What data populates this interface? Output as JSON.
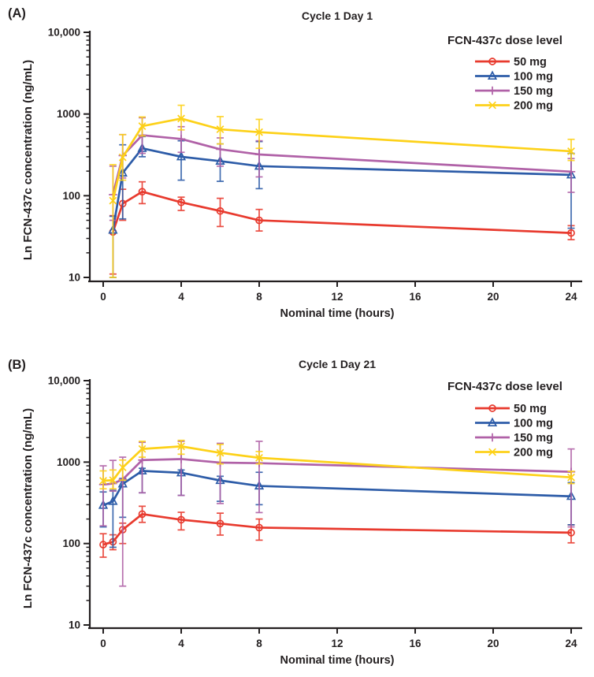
{
  "figure": {
    "background": "#ffffff",
    "text_color": "#231f20",
    "axis_color": "#231f20"
  },
  "chart_data": [
    {
      "type": "line",
      "panel_label": "(A)",
      "title": "Cycle 1 Day 1",
      "xlabel": "Nominal time (hours)",
      "ylabel": "Ln FCN-437c concentration (ng/mL)",
      "yscale": "log",
      "xlim": [
        0,
        24
      ],
      "ylim": [
        10,
        10000
      ],
      "xticks": [
        0,
        4,
        8,
        12,
        16,
        20,
        24
      ],
      "yticks": [
        10,
        100,
        1000,
        10000
      ],
      "ytick_labels": [
        "10",
        "100",
        "1000",
        "10,000"
      ],
      "grid": false,
      "legend_title": "FCN-437c dose level",
      "legend_position": "top-right",
      "x": [
        0.5,
        1,
        2,
        4,
        6,
        8,
        24
      ],
      "series": [
        {
          "name": "50 mg",
          "color": "#e83a2e",
          "marker": "circle",
          "values": [
            36,
            80,
            112,
            83,
            65,
            50,
            35
          ],
          "err_lo": [
            11,
            50,
            80,
            66,
            42,
            37,
            29
          ],
          "err_hi": [
            57,
            120,
            148,
            96,
            93,
            68,
            43
          ]
        },
        {
          "name": "100 mg",
          "color": "#2d5ca8",
          "marker": "triangle",
          "values": [
            38,
            190,
            380,
            300,
            265,
            230,
            180
          ],
          "err_lo": [
            10,
            52,
            300,
            155,
            150,
            122,
            40
          ],
          "err_hi": [
            56,
            420,
            530,
            470,
            430,
            460,
            330
          ]
        },
        {
          "name": "150 mg",
          "color": "#b061a7",
          "marker": "plus",
          "values": [
            103,
            310,
            550,
            495,
            370,
            320,
            197
          ],
          "err_lo": [
            50,
            165,
            330,
            340,
            230,
            170,
            110
          ],
          "err_hi": [
            230,
            560,
            900,
            700,
            510,
            470,
            285
          ]
        },
        {
          "name": "200 mg",
          "color": "#fdd118",
          "marker": "x",
          "values": [
            87,
            295,
            710,
            880,
            650,
            600,
            350
          ],
          "err_lo": [
            10,
            155,
            540,
            640,
            430,
            380,
            270
          ],
          "err_hi": [
            240,
            560,
            920,
            1280,
            930,
            860,
            490
          ]
        }
      ]
    },
    {
      "type": "line",
      "panel_label": "(B)",
      "title": "Cycle 1 Day 21",
      "xlabel": "Nominal time (hours)",
      "ylabel": "Ln FCN-437c concentration (ng/mL)",
      "yscale": "log",
      "xlim": [
        0,
        24
      ],
      "ylim": [
        10,
        10000
      ],
      "xticks": [
        0,
        4,
        8,
        12,
        16,
        20,
        24
      ],
      "yticks": [
        10,
        100,
        1000,
        10000
      ],
      "ytick_labels": [
        "10",
        "100",
        "1000",
        "10,000"
      ],
      "grid": false,
      "legend_title": "FCN-437c dose level",
      "legend_position": "top-right",
      "x": [
        0,
        0.5,
        1,
        2,
        4,
        6,
        8,
        24
      ],
      "series": [
        {
          "name": "50 mg",
          "color": "#e83a2e",
          "marker": "circle",
          "values": [
            97,
            105,
            148,
            230,
            196,
            176,
            157,
            136
          ],
          "err_lo": [
            68,
            84,
            100,
            182,
            147,
            127,
            110,
            102
          ],
          "err_hi": [
            132,
            128,
            178,
            287,
            242,
            236,
            200,
            170
          ]
        },
        {
          "name": "100 mg",
          "color": "#2d5ca8",
          "marker": "triangle",
          "values": [
            295,
            330,
            540,
            780,
            740,
            595,
            510,
            380
          ],
          "err_lo": [
            160,
            90,
            210,
            420,
            390,
            330,
            300,
            170
          ],
          "err_hi": [
            430,
            450,
            630,
            840,
            800,
            670,
            750,
            560
          ]
        },
        {
          "name": "150 mg",
          "color": "#b061a7",
          "marker": "plus",
          "values": [
            530,
            545,
            612,
            1060,
            1090,
            985,
            970,
            760
          ],
          "err_lo": [
            165,
            440,
            30,
            420,
            390,
            310,
            240,
            160
          ],
          "err_hi": [
            900,
            1050,
            1150,
            1750,
            1800,
            1700,
            1800,
            1450
          ]
        },
        {
          "name": "200 mg",
          "color": "#fdd118",
          "marker": "x",
          "values": [
            590,
            600,
            860,
            1450,
            1560,
            1300,
            1130,
            650
          ],
          "err_lo": [
            470,
            470,
            600,
            1150,
            1250,
            950,
            950,
            545
          ],
          "err_hi": [
            780,
            800,
            1060,
            1800,
            1850,
            1650,
            1350,
            770
          ]
        }
      ]
    }
  ]
}
